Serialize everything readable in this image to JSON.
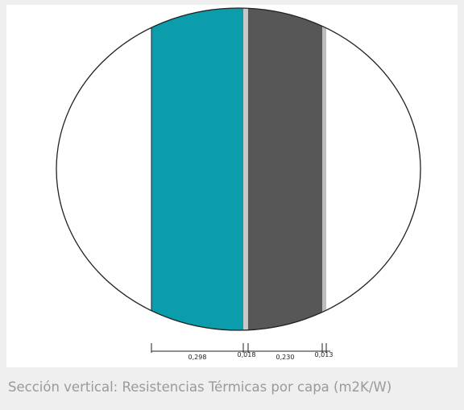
{
  "diagram": {
    "dimension_labels": [
      "0,298",
      "0,018",
      "0,230",
      "0,013"
    ]
  },
  "caption": "Sección vertical: Resistencias Térmicas por capa (m2K/W)"
}
